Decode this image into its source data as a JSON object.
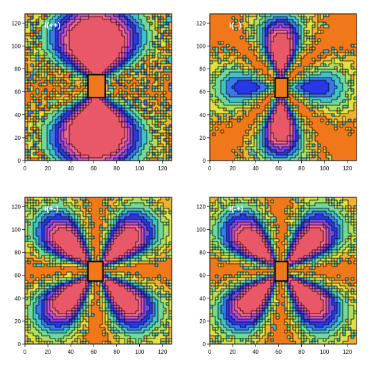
{
  "chart_data": [
    {
      "type": "heatmap",
      "panel_label": "I(++)",
      "pattern": "lobes-vertical",
      "background_color": "#f07818",
      "xlim": [
        0,
        128
      ],
      "ylim": [
        0,
        128
      ],
      "x_ticks": [
        0,
        20,
        40,
        60,
        80,
        100,
        120
      ],
      "y_ticks": [
        0,
        20,
        40,
        60,
        80,
        100,
        120
      ],
      "obstacle": {
        "x": [
          55,
          70
        ],
        "y": [
          55,
          75
        ]
      },
      "lobe_centers": [
        [
          58,
          96
        ],
        [
          58,
          34
        ]
      ]
    },
    {
      "type": "heatmap",
      "panel_label": "I(--)",
      "pattern": "cross",
      "background_color": "#f07818",
      "xlim": [
        0,
        128
      ],
      "ylim": [
        0,
        128
      ],
      "x_ticks": [
        0,
        20,
        40,
        60,
        80,
        100,
        120
      ],
      "y_ticks": [
        0,
        20,
        40,
        60,
        80,
        100,
        120
      ],
      "obstacle": {
        "x": [
          57,
          68
        ],
        "y": [
          55,
          72
        ]
      },
      "lobe_centers": [
        [
          62,
          100
        ],
        [
          62,
          28
        ],
        [
          28,
          64
        ],
        [
          98,
          64
        ]
      ]
    },
    {
      "type": "heatmap",
      "panel_label": "I(+-)",
      "pattern": "diagonal",
      "background_color": "#f07818",
      "xlim": [
        0,
        128
      ],
      "ylim": [
        0,
        128
      ],
      "x_ticks": [
        0,
        20,
        40,
        60,
        80,
        100,
        120
      ],
      "y_ticks": [
        0,
        20,
        40,
        60,
        80,
        100,
        120
      ],
      "obstacle": {
        "x": [
          55,
          68
        ],
        "y": [
          55,
          72
        ]
      },
      "lobe_centers": [
        [
          42,
          84
        ],
        [
          84,
          84
        ],
        [
          42,
          44
        ],
        [
          84,
          44
        ]
      ]
    },
    {
      "type": "heatmap",
      "panel_label": "I(-+)",
      "pattern": "diagonal",
      "background_color": "#f07818",
      "xlim": [
        0,
        128
      ],
      "ylim": [
        0,
        128
      ],
      "x_ticks": [
        0,
        20,
        40,
        60,
        80,
        100,
        120
      ],
      "y_ticks": [
        0,
        20,
        40,
        60,
        80,
        100,
        120
      ],
      "obstacle": {
        "x": [
          57,
          68
        ],
        "y": [
          55,
          72
        ]
      },
      "lobe_centers": [
        [
          42,
          84
        ],
        [
          84,
          84
        ],
        [
          42,
          44
        ],
        [
          84,
          44
        ]
      ]
    }
  ]
}
